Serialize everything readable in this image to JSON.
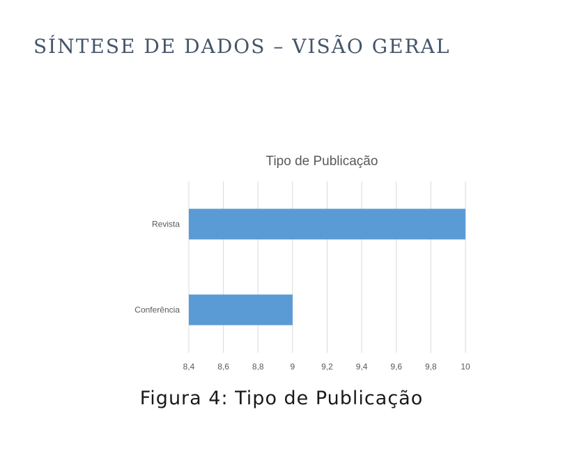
{
  "heading": "SÍNTESE DE DADOS – VISÃO GERAL",
  "caption": "Figura 4: Tipo de Publicação",
  "colors": {
    "bar": "#5b9bd5",
    "heading": "#44546a",
    "grid": "#d9d9d9"
  },
  "chart_data": {
    "type": "bar",
    "orientation": "horizontal",
    "title": "Tipo de Publicação",
    "categories": [
      "Revista",
      "Conferência"
    ],
    "values": [
      10,
      9
    ],
    "xlim": [
      8.4,
      10
    ],
    "x_ticks": [
      "8,4",
      "8,6",
      "8,8",
      "9",
      "9,2",
      "9,4",
      "9,6",
      "9,8",
      "10"
    ],
    "xlabel": "",
    "ylabel": "",
    "grid": true,
    "legend": false
  }
}
